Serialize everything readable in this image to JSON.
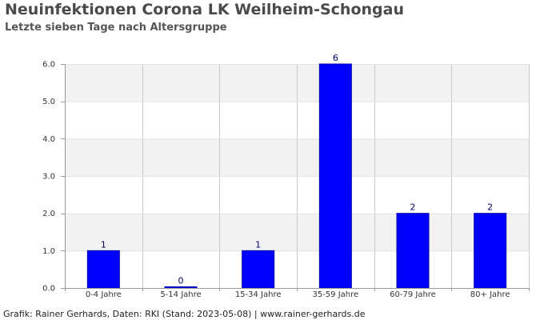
{
  "chart_data": {
    "type": "bar",
    "title": "Neuinfektionen Corona LK Weilheim-Schongau",
    "subtitle": "Letzte sieben Tage nach Altersgruppe",
    "categories": [
      "0-4 Jahre",
      "5-14 Jahre",
      "15-34 Jahre",
      "35-59 Jahre",
      "60-79 Jahre",
      "80+ Jahre"
    ],
    "series": [
      {
        "values": [
          1,
          0,
          1,
          6,
          2,
          2
        ],
        "data_labels": [
          "1",
          "0",
          "1",
          "6",
          "2",
          "2"
        ],
        "color": "#0000ff"
      }
    ],
    "ylim": [
      0,
      6
    ],
    "yticks": [
      0,
      1,
      2,
      3,
      4,
      5,
      6
    ],
    "ytick_labels": [
      "0.0",
      "1.0",
      "2.0",
      "3.0",
      "4.0",
      "5.0",
      "6.0"
    ],
    "grid": true,
    "band_colors": [
      "#f2f2f2",
      "#ffffff"
    ],
    "grid_color": "#c8c8c8",
    "bar_border_color": "#0000b0"
  },
  "footer": "Grafik: Rainer Gerhards, Daten: RKI (Stand: 2023-05-08) | www.rainer-gerhards.de"
}
